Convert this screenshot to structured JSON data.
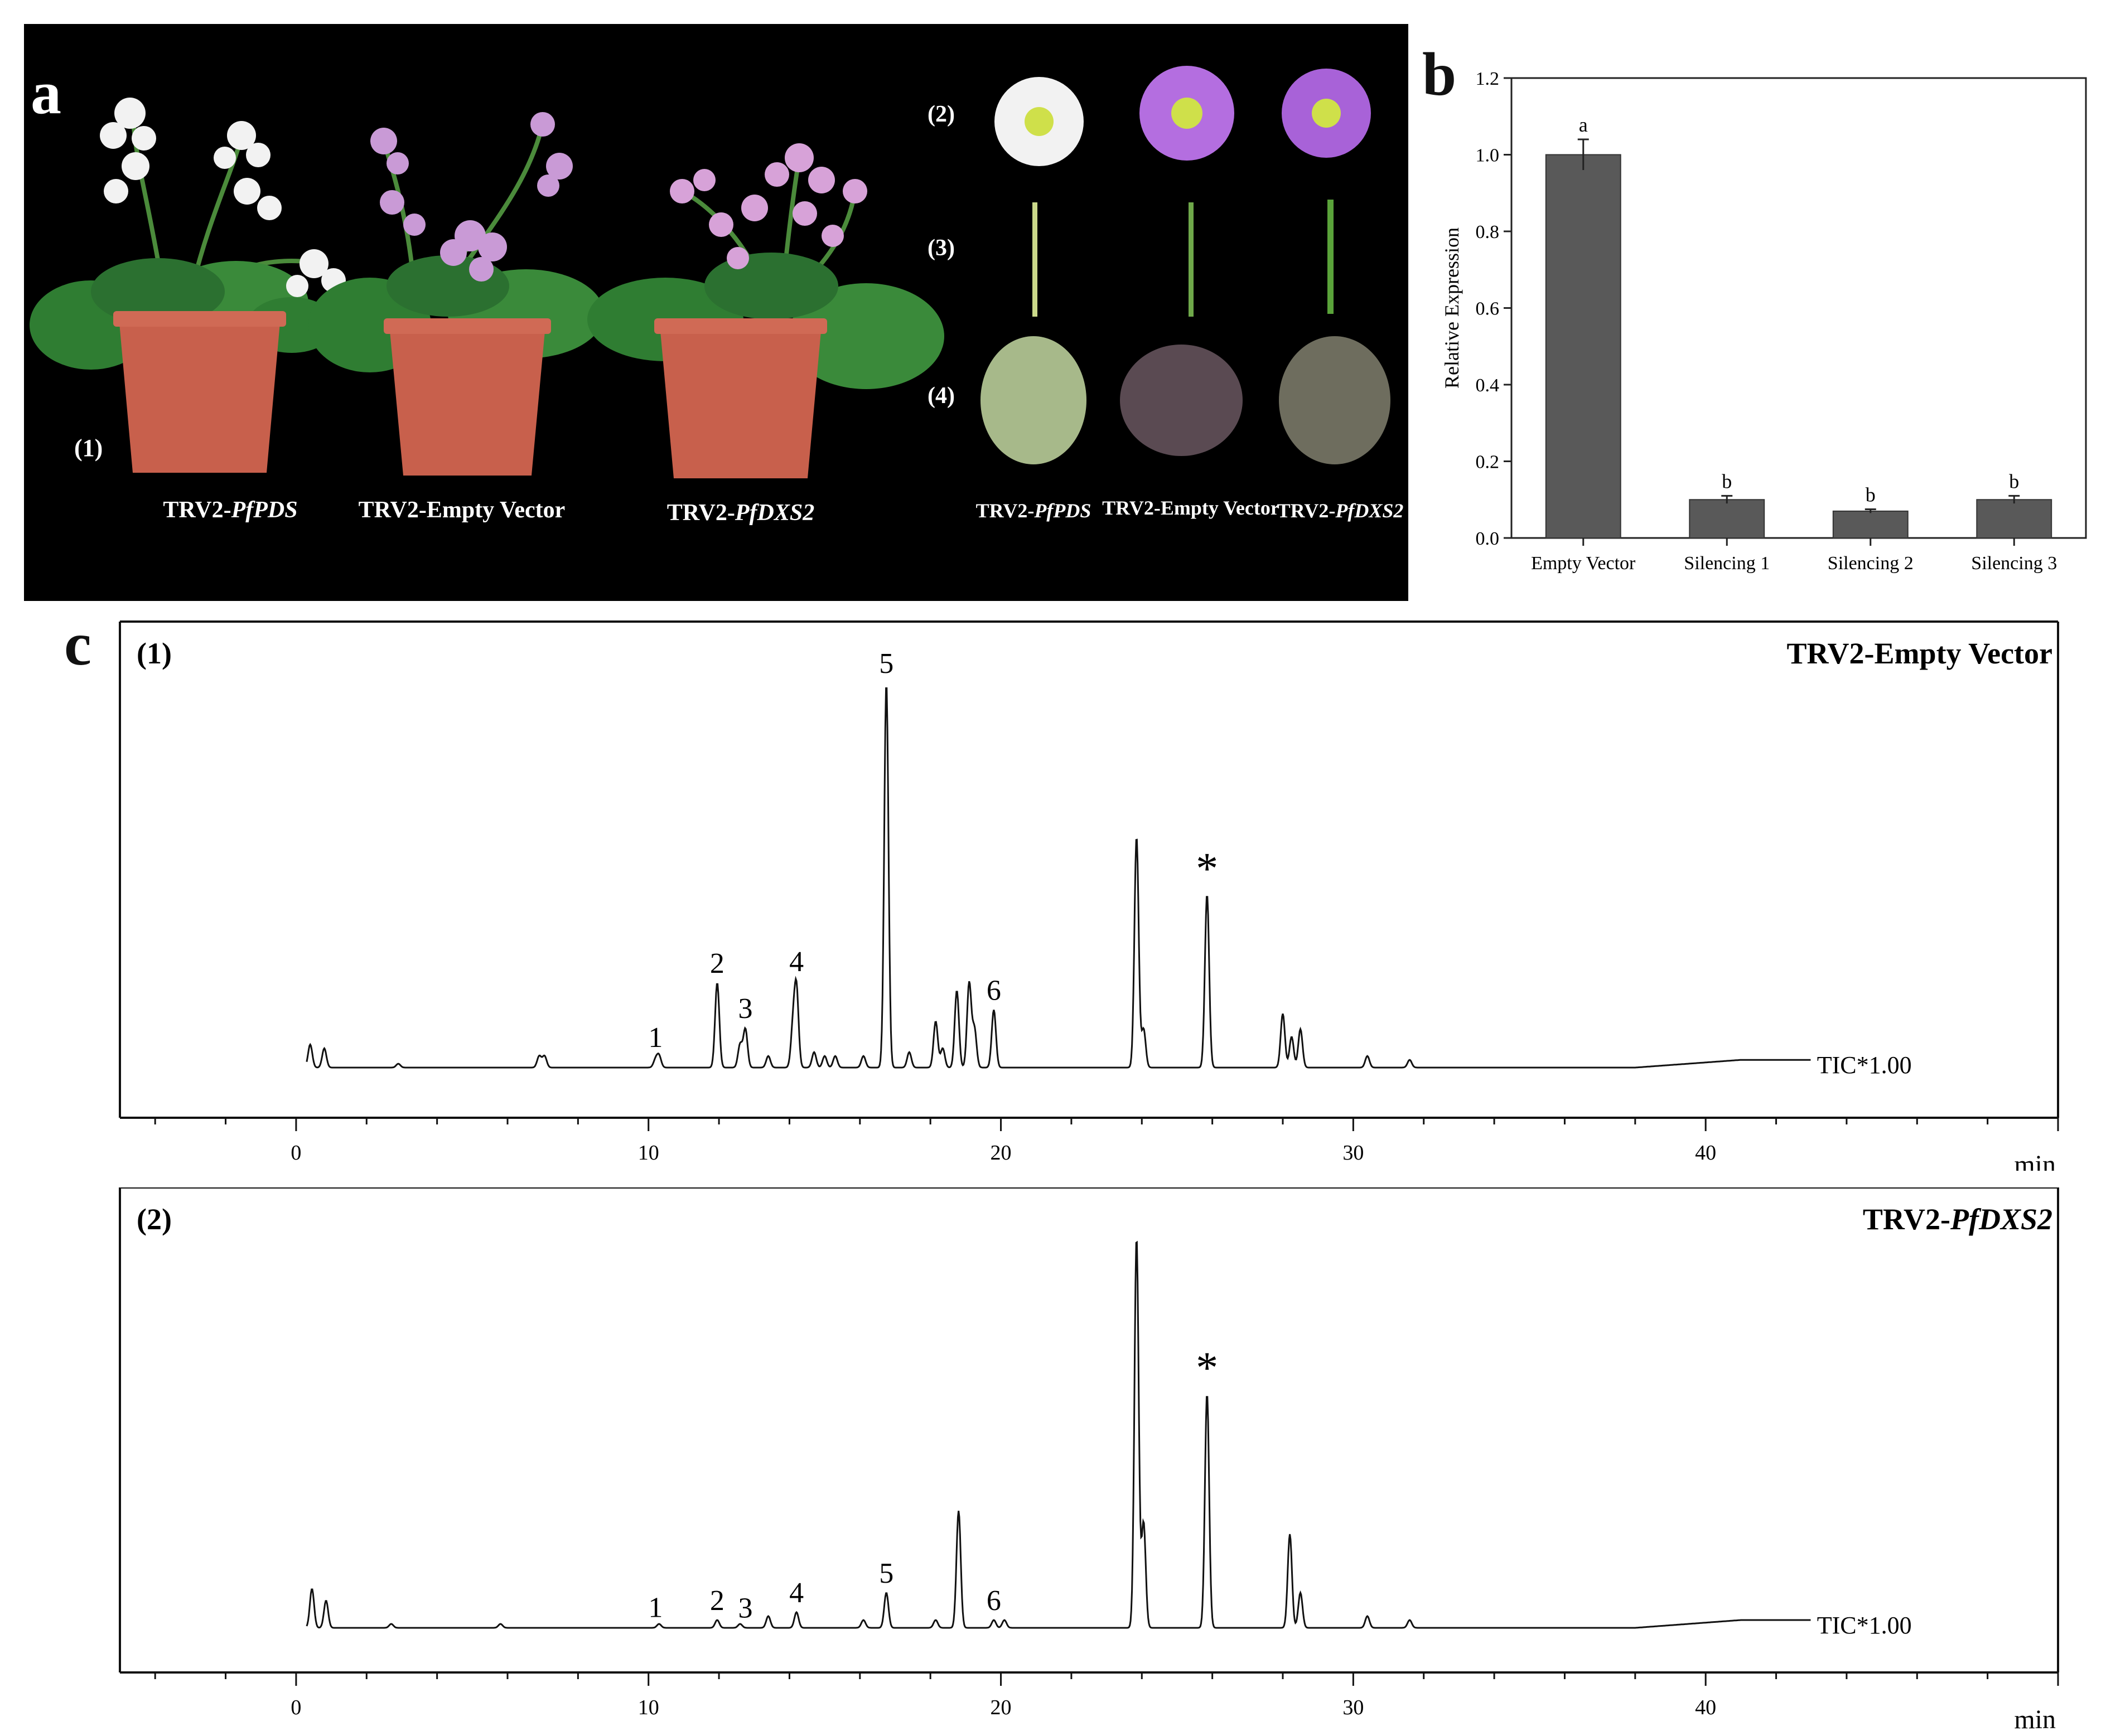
{
  "figure": {
    "panel_a": {
      "letter": "a",
      "plant_row_label": "(1)",
      "plant_captions": [
        {
          "prefix": "TRV2-",
          "italic": "PfPDS"
        },
        {
          "prefix": "TRV2-Empty Vector",
          "italic": ""
        },
        {
          "prefix": "TRV2-",
          "italic": "PfDXS2"
        }
      ],
      "organ_row_labels": [
        "(2)",
        "(3)",
        "(4)"
      ],
      "organ_captions": [
        {
          "prefix": "TRV2-",
          "italic": "PfPDS"
        },
        {
          "prefix": "TRV2-Empty Vector",
          "italic": ""
        },
        {
          "prefix": "TRV2-",
          "italic": "PfDXS2"
        }
      ],
      "colors": {
        "background": "#000000",
        "pot": "#c8604c",
        "leaf": "#2f7d32",
        "white_flower": "#f2f2f2",
        "purple_flower": "#b46ee0",
        "flower_center": "#cfe04a"
      }
    },
    "panel_b": {
      "letter": "b",
      "chart_data": {
        "type": "bar",
        "categories": [
          "Empty Vector",
          "Silencing 1",
          "Silencing 2",
          "Silencing 3"
        ],
        "values": [
          1.0,
          0.1,
          0.07,
          0.1
        ],
        "errors": [
          0.04,
          0.01,
          0.005,
          0.01
        ],
        "significance": [
          "a",
          "b",
          "b",
          "b"
        ],
        "ylabel": "Relative Expression",
        "ylim": [
          0.0,
          1.2
        ],
        "yticks": [
          "0.0",
          "0.2",
          "0.4",
          "0.6",
          "0.8",
          "1.0",
          "1.2"
        ],
        "bar_color": "#595959",
        "grid": false
      }
    },
    "panel_c": {
      "letter": "c",
      "chart_data": [
        {
          "type": "line",
          "panel_label": "(1)",
          "title_prefix": "TRV2-Empty Vector",
          "title_italic": "",
          "trace_label": "TIC*1.00",
          "xlabel": "min",
          "xlim": [
            -5,
            50
          ],
          "xticks": [
            0,
            10,
            20,
            30,
            40
          ],
          "peaks": [
            {
              "x": 0.4,
              "h": 0.06
            },
            {
              "x": 0.8,
              "h": 0.05
            },
            {
              "x": 2.9,
              "h": 0.01
            },
            {
              "x": 6.9,
              "h": 0.03
            },
            {
              "x": 7.05,
              "h": 0.03
            },
            {
              "x": 10.2,
              "h": 0.02
            },
            {
              "x": 10.3,
              "h": 0.03
            },
            {
              "x": 11.95,
              "h": 0.22
            },
            {
              "x": 12.6,
              "h": 0.06
            },
            {
              "x": 12.75,
              "h": 0.1
            },
            {
              "x": 13.4,
              "h": 0.03
            },
            {
              "x": 14.1,
              "h": 0.1
            },
            {
              "x": 14.2,
              "h": 0.2
            },
            {
              "x": 14.7,
              "h": 0.04
            },
            {
              "x": 15.0,
              "h": 0.03
            },
            {
              "x": 15.3,
              "h": 0.03
            },
            {
              "x": 16.1,
              "h": 0.03
            },
            {
              "x": 16.75,
              "h": 1.0
            },
            {
              "x": 17.4,
              "h": 0.04
            },
            {
              "x": 18.15,
              "h": 0.12
            },
            {
              "x": 18.35,
              "h": 0.05
            },
            {
              "x": 18.75,
              "h": 0.2
            },
            {
              "x": 19.1,
              "h": 0.22
            },
            {
              "x": 19.25,
              "h": 0.1
            },
            {
              "x": 19.8,
              "h": 0.15
            },
            {
              "x": 23.85,
              "h": 0.6
            },
            {
              "x": 24.05,
              "h": 0.1
            },
            {
              "x": 25.85,
              "h": 0.45
            },
            {
              "x": 28.0,
              "h": 0.14
            },
            {
              "x": 28.25,
              "h": 0.08
            },
            {
              "x": 28.5,
              "h": 0.1
            },
            {
              "x": 30.4,
              "h": 0.03
            },
            {
              "x": 31.6,
              "h": 0.02
            }
          ],
          "peak_labels": [
            {
              "text": "1",
              "x": 10.2
            },
            {
              "text": "2",
              "x": 11.95
            },
            {
              "text": "3",
              "x": 12.75
            },
            {
              "text": "4",
              "x": 14.2
            },
            {
              "text": "5",
              "x": 16.75
            },
            {
              "text": "6",
              "x": 19.8
            },
            {
              "text": "*",
              "x": 25.85
            }
          ],
          "line_color": "#111111"
        },
        {
          "type": "line",
          "panel_label": "(2)",
          "title_prefix": "TRV2-",
          "title_italic": "PfDXS2",
          "trace_label": "TIC*1.00",
          "xlabel": "min",
          "xlim": [
            -5,
            50
          ],
          "xticks": [
            0,
            10,
            20,
            30,
            40
          ],
          "peaks": [
            {
              "x": 0.45,
              "h": 0.1
            },
            {
              "x": 0.85,
              "h": 0.07
            },
            {
              "x": 2.7,
              "h": 0.01
            },
            {
              "x": 5.8,
              "h": 0.01
            },
            {
              "x": 10.3,
              "h": 0.01
            },
            {
              "x": 11.95,
              "h": 0.02
            },
            {
              "x": 12.6,
              "h": 0.01
            },
            {
              "x": 13.4,
              "h": 0.03
            },
            {
              "x": 14.2,
              "h": 0.04
            },
            {
              "x": 16.1,
              "h": 0.02
            },
            {
              "x": 16.75,
              "h": 0.09
            },
            {
              "x": 18.15,
              "h": 0.02
            },
            {
              "x": 18.8,
              "h": 0.3
            },
            {
              "x": 19.8,
              "h": 0.02
            },
            {
              "x": 20.1,
              "h": 0.02
            },
            {
              "x": 23.85,
              "h": 1.0
            },
            {
              "x": 24.05,
              "h": 0.27
            },
            {
              "x": 25.85,
              "h": 0.6
            },
            {
              "x": 28.2,
              "h": 0.24
            },
            {
              "x": 28.5,
              "h": 0.09
            },
            {
              "x": 30.4,
              "h": 0.03
            },
            {
              "x": 31.6,
              "h": 0.02
            }
          ],
          "peak_labels": [
            {
              "text": "1",
              "x": 10.2
            },
            {
              "text": "2",
              "x": 11.95
            },
            {
              "text": "3",
              "x": 12.75
            },
            {
              "text": "4",
              "x": 14.2
            },
            {
              "text": "5",
              "x": 16.75
            },
            {
              "text": "6",
              "x": 19.8
            },
            {
              "text": "*",
              "x": 25.85
            }
          ],
          "line_color": "#111111"
        }
      ]
    }
  }
}
